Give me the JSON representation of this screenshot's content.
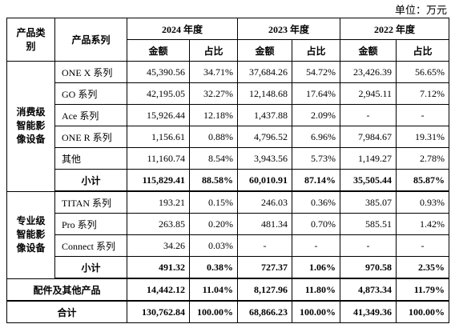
{
  "unit": "单位：万元",
  "table": {
    "header": {
      "category": "产品类别",
      "series": "产品系列",
      "years": [
        "2024 年度",
        "2023 年度",
        "2022 年度"
      ],
      "amount": "金额",
      "share": "占比"
    },
    "groups": [
      {
        "name": "消费级智能影像设备",
        "rows": [
          {
            "series": "ONE X 系列",
            "cells": [
              "45,390.56",
              "34.71%",
              "37,684.26",
              "54.72%",
              "23,426.39",
              "56.65%"
            ]
          },
          {
            "series": "GO 系列",
            "cells": [
              "42,195.05",
              "32.27%",
              "12,148.68",
              "17.64%",
              "2,945.11",
              "7.12%"
            ]
          },
          {
            "series": "Ace 系列",
            "cells": [
              "15,926.44",
              "12.18%",
              "1,437.88",
              "2.09%",
              "-",
              "-"
            ]
          },
          {
            "series": "ONE R 系列",
            "cells": [
              "1,156.61",
              "0.88%",
              "4,796.52",
              "6.96%",
              "7,984.67",
              "19.31%"
            ]
          },
          {
            "series": "其他",
            "cells": [
              "11,160.74",
              "8.54%",
              "3,943.56",
              "5.73%",
              "1,149.27",
              "2.78%"
            ]
          }
        ],
        "subtotal": {
          "label": "小计",
          "cells": [
            "115,829.41",
            "88.58%",
            "60,010.91",
            "87.14%",
            "35,505.44",
            "85.87%"
          ]
        }
      },
      {
        "name": "专业级智能影像设备",
        "rows": [
          {
            "series": "TITAN 系列",
            "cells": [
              "193.21",
              "0.15%",
              "246.03",
              "0.36%",
              "385.07",
              "0.93%"
            ]
          },
          {
            "series": "Pro 系列",
            "cells": [
              "263.85",
              "0.20%",
              "481.34",
              "0.70%",
              "585.51",
              "1.42%"
            ]
          },
          {
            "series": "Connect 系列",
            "cells": [
              "34.26",
              "0.03%",
              "-",
              "-",
              "-",
              "-"
            ]
          }
        ],
        "subtotal": {
          "label": "小计",
          "cells": [
            "491.32",
            "0.38%",
            "727.37",
            "1.06%",
            "970.58",
            "2.35%"
          ]
        }
      }
    ],
    "accessories": {
      "label": "配件及其他产品",
      "cells": [
        "14,442.12",
        "11.04%",
        "8,127.96",
        "11.80%",
        "4,873.34",
        "11.79%"
      ]
    },
    "total": {
      "label": "合计",
      "cells": [
        "130,762.84",
        "100.00%",
        "68,866.23",
        "100.00%",
        "41,349.36",
        "100.00%"
      ]
    }
  }
}
